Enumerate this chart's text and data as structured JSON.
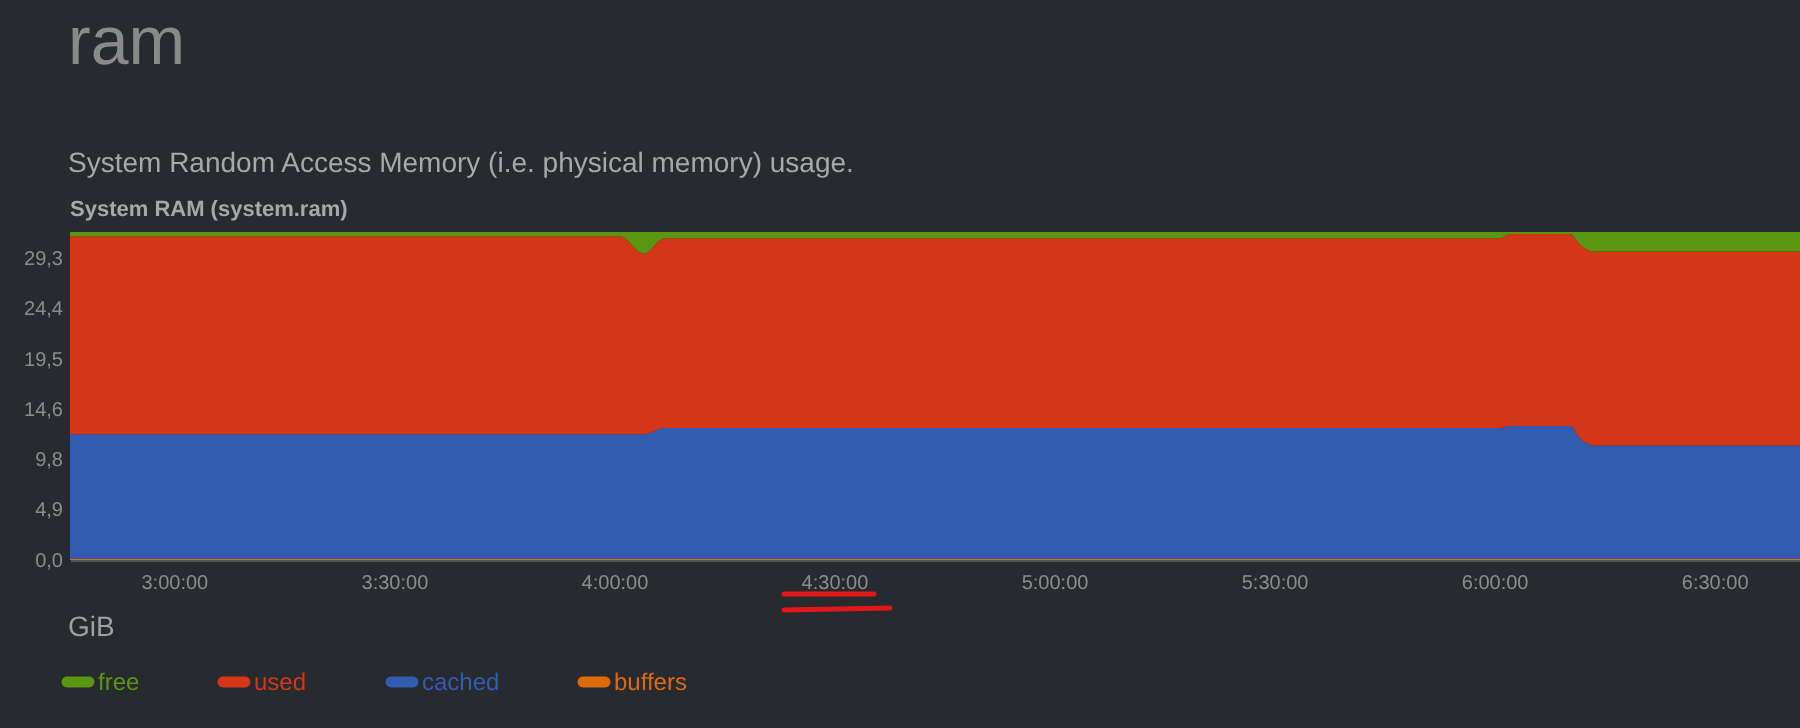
{
  "chart_data": {
    "type": "area",
    "title": "ram",
    "subtitle": "System Random Access Memory (i.e. physical memory) usage.",
    "annotations": [
      "System RAM (system.ram)",
      "GiB"
    ],
    "stacked": true,
    "legend": "bottom",
    "grid": false,
    "x": [
      2.764,
      4.014,
      4.068,
      4.114,
      6.014,
      6.036,
      6.173,
      6.195,
      6.227,
      6.695
    ],
    "xlim": [
      2.764,
      6.695
    ],
    "xticks": [
      {
        "value": 3,
        "label": "3:00:00"
      },
      {
        "value": 3.5,
        "label": "3:30:00"
      },
      {
        "value": 4,
        "label": "4:00:00"
      },
      {
        "value": 4.5,
        "label": "4:30:00"
      },
      {
        "value": 5,
        "label": "5:00:00"
      },
      {
        "value": 5.5,
        "label": "5:30:00"
      },
      {
        "value": 6,
        "label": "6:00:00"
      },
      {
        "value": 6.5,
        "label": "6:30:00"
      }
    ],
    "ylim": [
      0,
      31.8
    ],
    "yticks": [
      {
        "value": 0,
        "label": "0,0"
      },
      {
        "value": 4.9,
        "label": "4,9"
      },
      {
        "value": 9.8,
        "label": "9,8"
      },
      {
        "value": 14.6,
        "label": "14,6"
      },
      {
        "value": 19.5,
        "label": "19,5"
      },
      {
        "value": 24.4,
        "label": "24,4"
      },
      {
        "value": 29.3,
        "label": "29,3"
      }
    ],
    "series": [
      {
        "name": "buffers",
        "color": "#dd6b0c",
        "values": [
          0.1,
          0.1,
          0.1,
          0.1,
          0.1,
          0.1,
          0.1,
          0.1,
          0.1,
          0.1
        ]
      },
      {
        "name": "cached",
        "color": "#315cb0",
        "values": [
          12.1,
          12.1,
          12.1,
          12.7,
          12.7,
          12.9,
          12.9,
          11.7,
          11.0,
          11.0
        ]
      },
      {
        "name": "used",
        "color": "#d33718",
        "values": [
          19.2,
          19.2,
          17.5,
          18.4,
          18.4,
          18.6,
          18.6,
          18.8,
          18.8,
          18.8
        ]
      },
      {
        "name": "free",
        "color": "#5b9612",
        "values": [
          0.4,
          0.4,
          2.1,
          0.6,
          0.6,
          0.2,
          0.2,
          1.2,
          1.9,
          1.9
        ]
      }
    ]
  }
}
